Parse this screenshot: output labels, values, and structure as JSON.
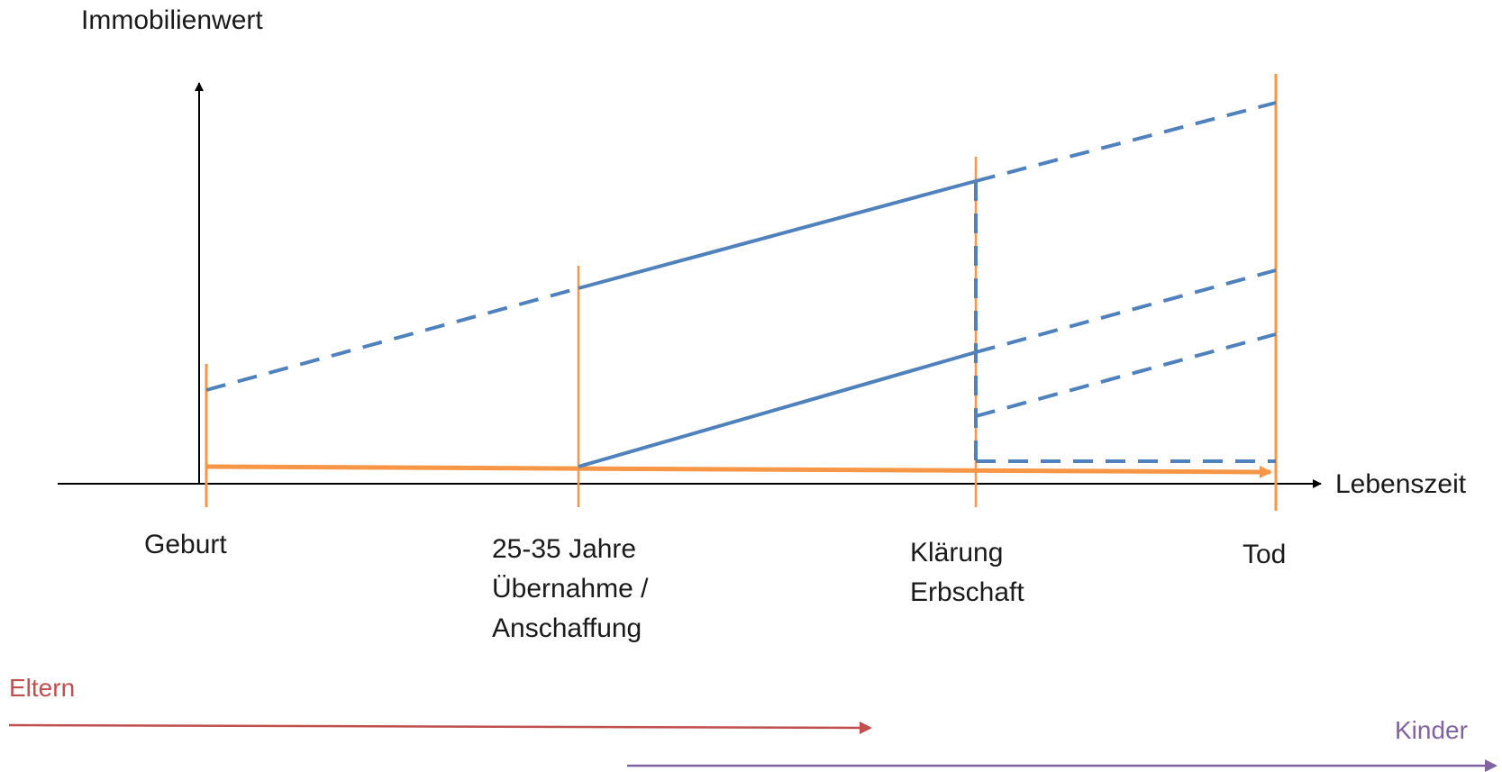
{
  "y_axis_label": "Immobilienwert",
  "x_axis_label": "Lebenszeit",
  "milestones": [
    {
      "id": "geburt",
      "lines": [
        "Geburt"
      ]
    },
    {
      "id": "uebernahme",
      "lines": [
        "25-35 Jahre",
        "Übernahme /",
        "Anschaffung"
      ]
    },
    {
      "id": "klaerung",
      "lines": [
        "Klärung",
        "Erbschaft"
      ]
    },
    {
      "id": "tod",
      "lines": [
        "Tod"
      ]
    }
  ],
  "generations": {
    "parents": {
      "label": "Eltern",
      "color": "#c0504d"
    },
    "children": {
      "label": "Kinder",
      "color": "#8064a2"
    }
  },
  "colors": {
    "axis": "#000000",
    "timeline": "#f79646",
    "value_lines": "#4f81bd"
  }
}
